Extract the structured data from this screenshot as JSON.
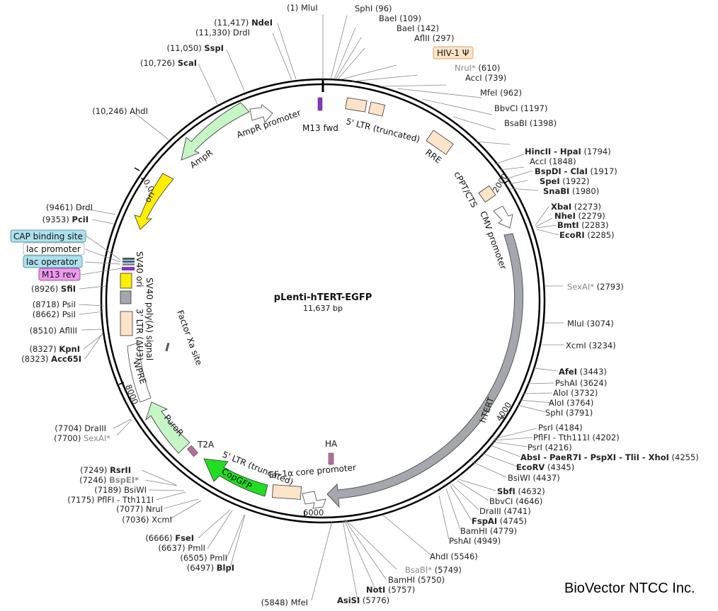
{
  "plasmid": {
    "name": "pLenti-hTERT-EGFP",
    "size": "11,637 bp"
  },
  "brand": "BioVector NTCC Inc.",
  "ticks": {
    "t2000": "2000",
    "t4000": "4000",
    "t6000": "6000",
    "t8000": "8000",
    "t10000": "10,000"
  },
  "sites": {
    "mlui1": {
      "pos": "(1)",
      "name": "MluI"
    },
    "sphi96": {
      "name": "SphI",
      "pos": "(96)"
    },
    "baei109": {
      "name": "BaeI",
      "pos": "(109)"
    },
    "baei142": {
      "name": "BaeI",
      "pos": "(142)"
    },
    "aflii297": {
      "name": "AflII",
      "pos": "(297)"
    },
    "hiv1": {
      "name": "HIV-1 Ψ"
    },
    "nrui610": {
      "name": "NruI*",
      "pos": "(610)"
    },
    "acci739": {
      "name": "AccI",
      "pos": "(739)"
    },
    "mfei962": {
      "name": "MfeI",
      "pos": "(962)"
    },
    "bbvci1197": {
      "name": "BbvCI",
      "pos": "(1197)"
    },
    "bsabi1398": {
      "name": "BsaBI",
      "pos": "(1398)"
    },
    "hincii1794": {
      "name": "HincII - HpaI",
      "pos": "(1794)"
    },
    "acci1848": {
      "name": "AccI",
      "pos": "(1848)"
    },
    "bspdi1917": {
      "name": "BspDI - ClaI",
      "pos": "(1917)"
    },
    "spei1922": {
      "name": "SpeI",
      "pos": "(1922)"
    },
    "snabi1980": {
      "name": "SnaBI",
      "pos": "(1980)"
    },
    "xbai2273": {
      "name": "XbaI",
      "pos": "(2273)"
    },
    "nhei2279": {
      "name": "NheI",
      "pos": "(2279)"
    },
    "bmti2283": {
      "name": "BmtI",
      "pos": "(2283)"
    },
    "ecori2285": {
      "name": "EcoRI",
      "pos": "(2285)"
    },
    "sexai2793": {
      "name": "SexAI*",
      "pos": "(2793)"
    },
    "mlui3074": {
      "name": "MluI",
      "pos": "(3074)"
    },
    "xcmi3234": {
      "name": "XcmI",
      "pos": "(3234)"
    },
    "afei3443": {
      "name": "AfeI",
      "pos": "(3443)"
    },
    "pshai3624": {
      "name": "PshAI",
      "pos": "(3624)"
    },
    "aloi3732": {
      "name": "AloI",
      "pos": "(3732)"
    },
    "aloi3764": {
      "name": "AloI",
      "pos": "(3764)"
    },
    "sphi3791": {
      "name": "SphI",
      "pos": "(3791)"
    },
    "psri4184": {
      "name": "PsrI",
      "pos": "(4184)"
    },
    "pflfi4202": {
      "name": "PflFI - Tth111I",
      "pos": "(4202)"
    },
    "psri4216": {
      "name": "PsrI",
      "pos": "(4216)"
    },
    "absi4255": {
      "name": "AbsI - PaeR7I - PspXI - TliI - XhoI",
      "pos": "(4255)"
    },
    "ecorv4345": {
      "name": "EcoRV",
      "pos": "(4345)"
    },
    "bsiwi4437": {
      "name": "BsiWI",
      "pos": "(4437)"
    },
    "sbfi4632": {
      "name": "SbfI",
      "pos": "(4632)"
    },
    "bbvci4646": {
      "name": "BbvCI",
      "pos": "(4646)"
    },
    "draiii4741": {
      "name": "DraIII",
      "pos": "(4741)"
    },
    "fspai4745": {
      "name": "FspAI",
      "pos": "(4745)"
    },
    "bamhi4779": {
      "name": "BamHI",
      "pos": "(4779)"
    },
    "pshai4949": {
      "name": "PshAI",
      "pos": "(4949)"
    },
    "ahdi5546": {
      "name": "AhdI",
      "pos": "(5546)"
    },
    "bsabi5749": {
      "name": "BsaBI*",
      "pos": "(5749)"
    },
    "bamhi5750": {
      "name": "BamHI",
      "pos": "(5750)"
    },
    "noti5757": {
      "name": "NotI",
      "pos": "(5757)"
    },
    "asisi5776": {
      "name": "AsiSI",
      "pos": "(5776)"
    },
    "mfei5848": {
      "pos": "(5848)",
      "name": "MfeI"
    },
    "blpi6497": {
      "pos": "(6497)",
      "name": "BlpI"
    },
    "pmli6505": {
      "pos": "(6505)",
      "name": "PmlI"
    },
    "pmli6637": {
      "pos": "(6637)",
      "name": "PmlI"
    },
    "fsei6666": {
      "pos": "(6666)",
      "name": "FseI"
    },
    "xcmi7036": {
      "pos": "(7036)",
      "name": "XcmI"
    },
    "nrui7077": {
      "pos": "(7077)",
      "name": "NruI"
    },
    "pflfi7175": {
      "pos": "(7175)",
      "name": "PflFI - Tth111I"
    },
    "bsiwi7189": {
      "pos": "(7189)",
      "name": "BsiWI"
    },
    "bspei7246": {
      "pos": "(7246)",
      "name": "BspEI*"
    },
    "rsrii7249": {
      "pos": "(7249)",
      "name": "RsrII"
    },
    "sexai7700": {
      "pos": "(7700)",
      "name": "SexAI*"
    },
    "draiii7704": {
      "pos": "(7704)",
      "name": "DraIII"
    },
    "acc65i8323": {
      "pos": "(8323)",
      "name": "Acc65I"
    },
    "kpni8327": {
      "pos": "(8327)",
      "name": "KpnI"
    },
    "aflii8510": {
      "pos": "(8510)",
      "name": "AflIII"
    },
    "psii8662": {
      "pos": "(8662)",
      "name": "PsiI"
    },
    "psii8718": {
      "pos": "(8718)",
      "name": "PsiI"
    },
    "sfii8926": {
      "pos": "(8926)",
      "name": "SfiI"
    },
    "cap": {
      "name": "CAP binding site"
    },
    "lacprom": {
      "name": "lac promoter"
    },
    "lacop": {
      "name": "lac operator"
    },
    "m13rev": {
      "name": "M13 rev"
    },
    "pcii9353": {
      "pos": "(9353)",
      "name": "PciI"
    },
    "drdi9461": {
      "pos": "(9461)",
      "name": "DrdI"
    },
    "ahdi10246": {
      "pos": "(10,246)",
      "name": "AhdI"
    },
    "scai10726": {
      "pos": "(10,726)",
      "name": "ScaI"
    },
    "sspi11050": {
      "pos": "(11,050)",
      "name": "SspI"
    },
    "drdi11330": {
      "pos": "(11,330)",
      "name": "DrdI"
    },
    "ndei11417": {
      "pos": "(11,417)",
      "name": "NdeI"
    }
  },
  "features": {
    "m13fwd": "M13 fwd",
    "ltr5": "5' LTR (truncated)",
    "rre": "RRE",
    "cppt": "cPPT/CTS",
    "cmv": "CMV promoter",
    "htert": "hTERT",
    "ha": "HA",
    "ef1a": "EF-1α core promoter",
    "ltr5b": "5' LTR (truncated)",
    "copgfp": "CopGFP",
    "t2a": "T2A",
    "puror": "PuroR",
    "wpre": "WPRE",
    "factorxa": "Factor Xa site",
    "ltr3": "3' LTR (ΔU3)",
    "sv40pa": "SV40 poly(A) signal",
    "sv40ori": "SV40 ori",
    "ori": "ori",
    "ampr": "AmpR",
    "amprprom": "AmpR promoter"
  },
  "colors": {
    "ltr": "#fde3c8",
    "cmv": "#a4a8ae",
    "gfp": "#22dd22",
    "ori": "#ffee00",
    "ampr": "#c6f5c6",
    "label_box_blue": "#aee0ee",
    "label_box_pink": "#ee99ee"
  }
}
